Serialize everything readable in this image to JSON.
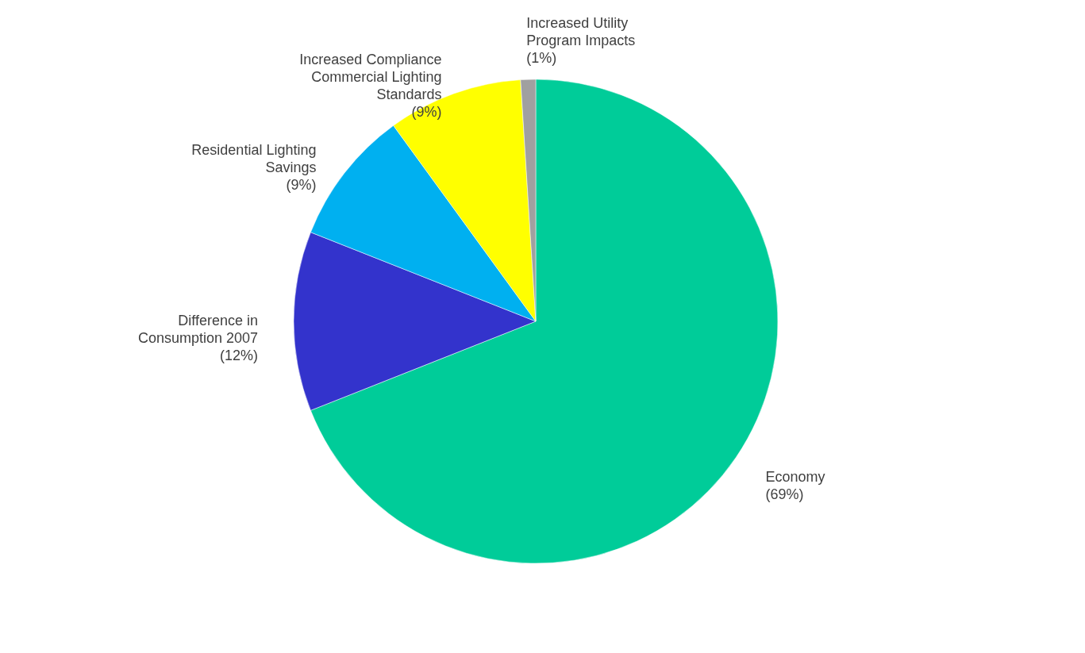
{
  "chart_data": {
    "type": "pie",
    "categories": [
      "Economy",
      "Difference in Consumption 2007",
      "Residential Lighting Savings",
      "Increased Compliance Commercial Lighting Standards",
      "Increased Utility Program Impacts"
    ],
    "values": [
      69,
      12,
      9,
      9,
      1
    ],
    "value_labels": [
      "(69%)",
      "(12%)",
      "(9%)",
      "(9%)",
      "(1%)"
    ],
    "colors": [
      "#00cc99",
      "#3333cc",
      "#00b0f0",
      "#ffff00",
      "#a0a0a0"
    ],
    "legend": false
  }
}
